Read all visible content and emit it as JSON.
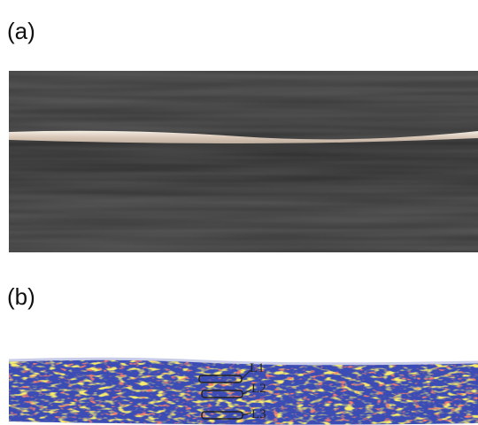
{
  "panels": [
    {
      "label": "(a)"
    },
    {
      "label": "(b)",
      "annotations": [
        "L1",
        "L2",
        "L3"
      ]
    }
  ]
}
